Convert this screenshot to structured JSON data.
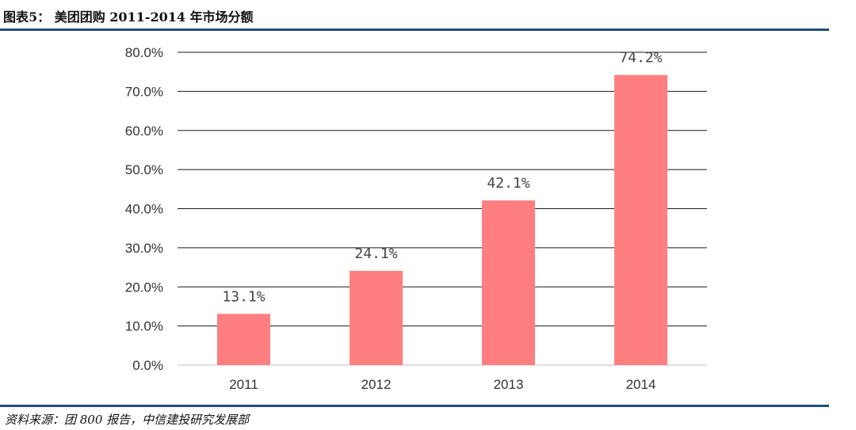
{
  "figure": {
    "title": "图表5：  美团团购 2011-2014 年市场分额",
    "source": "资料来源：团 800 报告，中信建投研究发展部"
  },
  "colors": {
    "bar": "#ff7f80",
    "rule": "#1f4e79",
    "grid": "#1a1a1a"
  },
  "chart_data": {
    "type": "bar",
    "categories": [
      "2011",
      "2012",
      "2013",
      "2014"
    ],
    "values": [
      13.1,
      24.1,
      42.1,
      74.2
    ],
    "value_labels": [
      "13.1%",
      "24.1%",
      "42.1%",
      "74.2%"
    ],
    "y_ticks": [
      "0.0%",
      "10.0%",
      "20.0%",
      "30.0%",
      "40.0%",
      "50.0%",
      "60.0%",
      "70.0%",
      "80.0%"
    ],
    "ylim": [
      0,
      80
    ],
    "grid": true,
    "legend": "none"
  }
}
